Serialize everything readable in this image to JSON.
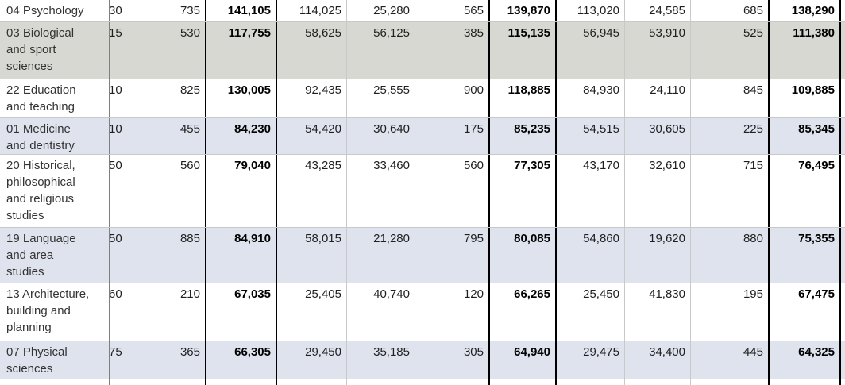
{
  "table": {
    "description_of_visible_content": "Cropped statistics table of study subjects with student counts; first numeric column is partially clipped by a pane divider; bold columns are totals",
    "bold_value_indexes": [
      2,
      6,
      10
    ],
    "rows": [
      {
        "subject": "04 Psychology",
        "shade": "none",
        "values": [
          "30",
          "735",
          "141,105",
          "114,025",
          "25,280",
          "565",
          "139,870",
          "113,020",
          "24,585",
          "685",
          "138,290"
        ]
      },
      {
        "subject": "03 Biological\nand sport\nsciences",
        "shade": "gray",
        "values": [
          "15",
          "530",
          "117,755",
          "58,625",
          "56,125",
          "385",
          "115,135",
          "56,945",
          "53,910",
          "525",
          "111,380"
        ]
      },
      {
        "subject": "22 Education\nand teaching",
        "shade": "none",
        "values": [
          "10",
          "825",
          "130,005",
          "92,435",
          "25,555",
          "900",
          "118,885",
          "84,930",
          "24,110",
          "845",
          "109,885"
        ]
      },
      {
        "subject": "01 Medicine\nand dentistry",
        "shade": "blue",
        "values": [
          "10",
          "455",
          "84,230",
          "54,420",
          "30,640",
          "175",
          "85,235",
          "54,515",
          "30,605",
          "225",
          "85,345"
        ]
      },
      {
        "subject": "20 Historical,\nphilosophical\nand religious\nstudies",
        "shade": "none",
        "values": [
          "50",
          "560",
          "79,040",
          "43,285",
          "33,460",
          "560",
          "77,305",
          "43,170",
          "32,610",
          "715",
          "76,495"
        ]
      },
      {
        "subject": "19 Language\nand area\nstudies",
        "shade": "blue",
        "values": [
          "50",
          "885",
          "84,910",
          "58,015",
          "21,280",
          "795",
          "80,085",
          "54,860",
          "19,620",
          "880",
          "75,355"
        ]
      },
      {
        "subject": "13 Architecture,\nbuilding and\nplanning",
        "shade": "none",
        "values": [
          "60",
          "210",
          "67,035",
          "25,405",
          "40,740",
          "120",
          "66,265",
          "25,450",
          "41,830",
          "195",
          "67,475"
        ]
      },
      {
        "subject": "07 Physical\nsciences",
        "shade": "blue",
        "values": [
          "75",
          "365",
          "66,305",
          "29,450",
          "35,185",
          "305",
          "64,940",
          "29,475",
          "34,400",
          "445",
          "64,325"
        ]
      }
    ]
  },
  "colors": {
    "row_shade_gray": "#d8d8d2",
    "row_shade_blue": "#dfe3ee",
    "grid_line": "#c9c9c9",
    "pane_divider": "#7f7f7f",
    "total_column_border": "#000000",
    "background": "#ffffff"
  }
}
